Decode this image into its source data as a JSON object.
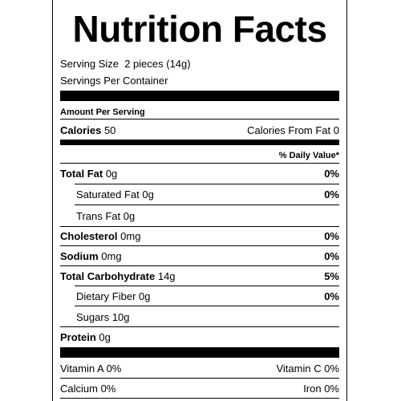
{
  "title": "Nutrition Facts",
  "serving": {
    "serving_size_label": "Serving Size",
    "serving_size_value": "2 pieces (14g)",
    "servings_per_container_label": "Servings Per Container"
  },
  "amount_per_serving": "Amount Per Serving",
  "calories": {
    "label": "Calories",
    "value": "50",
    "from_fat": "Calories From Fat 0"
  },
  "daily_value_header": "% Daily Value*",
  "nutrients": {
    "total_fat": {
      "label": "Total Fat",
      "amount": "0g",
      "dv": "0%"
    },
    "saturated_fat": {
      "label": "Saturated Fat",
      "amount": "0g",
      "dv": "0%"
    },
    "trans_fat": {
      "label": "Trans Fat",
      "amount": "0g"
    },
    "cholesterol": {
      "label": "Cholesterol",
      "amount": "0mg",
      "dv": "0%"
    },
    "sodium": {
      "label": "Sodium",
      "amount": "0mg",
      "dv": "0%"
    },
    "total_carbohydrate": {
      "label": "Total Carbohydrate",
      "amount": "14g",
      "dv": "5%"
    },
    "dietary_fiber": {
      "label": "Dietary Fiber",
      "amount": "0g",
      "dv": "0%"
    },
    "sugars": {
      "label": "Sugars",
      "amount": "10g"
    },
    "protein": {
      "label": "Protein",
      "amount": "0g"
    }
  },
  "vitamins": {
    "vitamin_a": "Vitamin A 0%",
    "vitamin_c": "Vitamin C 0%",
    "calcium": "Calcium 0%",
    "iron": "Iron 0%"
  }
}
